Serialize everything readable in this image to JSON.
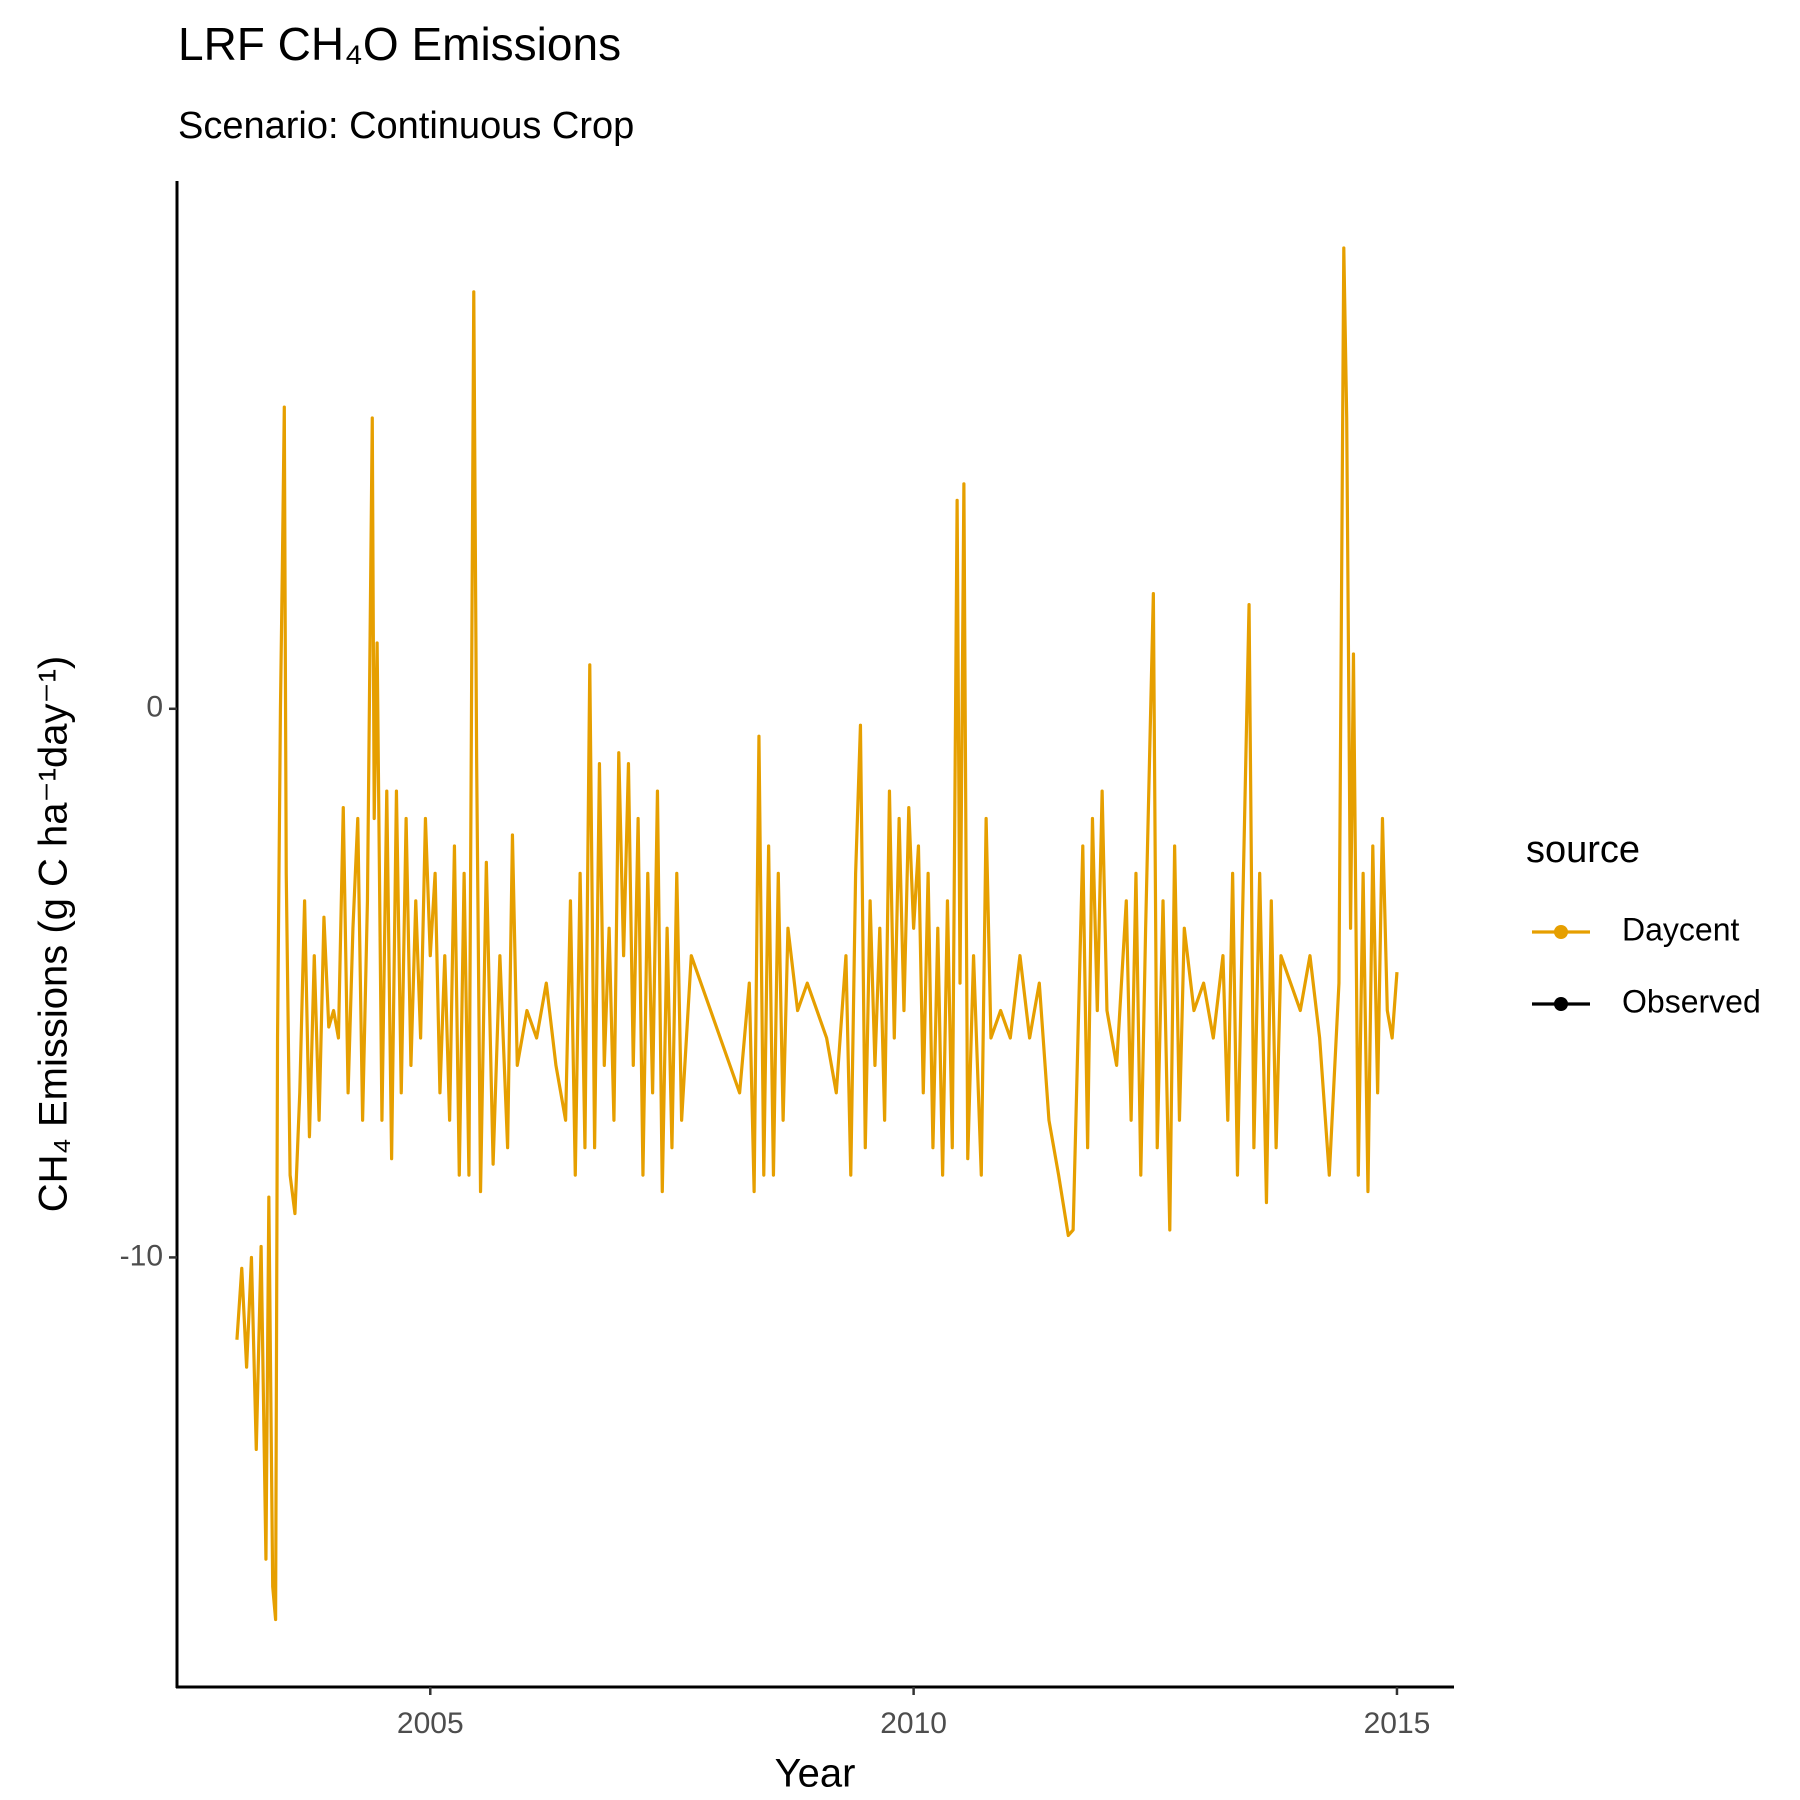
{
  "chart_data": {
    "type": "line",
    "title": "LRF CH₄O Emissions",
    "subtitle": "Scenario: Continuous Crop",
    "x_label": "Year",
    "y_label": "CH₄ Emissions (g C ha⁻¹day⁻¹)",
    "legend_title": "source",
    "legend_position": "right",
    "grid": false,
    "xlim": [
      2002.38,
      2015.59
    ],
    "ylim": [
      -17.83,
      9.62
    ],
    "xticks": [
      2005,
      2010,
      2015
    ],
    "yticks": [
      -10,
      0
    ],
    "series": [
      {
        "name": "Daycent",
        "color": "#E69F00",
        "x": [
          2003.0,
          2003.05,
          2003.1,
          2003.15,
          2003.2,
          2003.25,
          2003.3,
          2003.33,
          2003.37,
          2003.4,
          2003.42,
          2003.45,
          2003.47,
          2003.49,
          2003.51,
          2003.55,
          2003.6,
          2003.65,
          2003.7,
          2003.75,
          2003.8,
          2003.85,
          2003.9,
          2003.95,
          2004.0,
          2004.05,
          2004.1,
          2004.15,
          2004.2,
          2004.25,
          2004.3,
          2004.35,
          2004.4,
          2004.42,
          2004.45,
          2004.5,
          2004.55,
          2004.6,
          2004.65,
          2004.7,
          2004.75,
          2004.8,
          2004.85,
          2004.9,
          2004.95,
          2005.0,
          2005.05,
          2005.1,
          2005.15,
          2005.2,
          2005.25,
          2005.3,
          2005.35,
          2005.4,
          2005.45,
          2005.48,
          2005.52,
          2005.58,
          2005.65,
          2005.72,
          2005.8,
          2005.85,
          2005.9,
          2006.0,
          2006.1,
          2006.2,
          2006.3,
          2006.4,
          2006.45,
          2006.5,
          2006.55,
          2006.6,
          2006.65,
          2006.7,
          2006.75,
          2006.8,
          2006.85,
          2006.9,
          2006.95,
          2007.0,
          2007.05,
          2007.1,
          2007.15,
          2007.2,
          2007.25,
          2007.3,
          2007.35,
          2007.4,
          2007.45,
          2007.5,
          2007.55,
          2007.6,
          2007.7,
          2007.8,
          2007.9,
          2008.0,
          2008.1,
          2008.2,
          2008.3,
          2008.35,
          2008.4,
          2008.45,
          2008.5,
          2008.55,
          2008.6,
          2008.65,
          2008.7,
          2008.8,
          2008.9,
          2009.0,
          2009.1,
          2009.2,
          2009.3,
          2009.35,
          2009.4,
          2009.45,
          2009.5,
          2009.55,
          2009.6,
          2009.65,
          2009.7,
          2009.75,
          2009.8,
          2009.85,
          2009.9,
          2009.95,
          2010.0,
          2010.05,
          2010.1,
          2010.15,
          2010.2,
          2010.25,
          2010.3,
          2010.35,
          2010.4,
          2010.45,
          2010.48,
          2010.52,
          2010.56,
          2010.62,
          2010.7,
          2010.75,
          2010.8,
          2010.9,
          2011.0,
          2011.1,
          2011.2,
          2011.3,
          2011.4,
          2011.5,
          2011.6,
          2011.65,
          2011.7,
          2011.75,
          2011.8,
          2011.85,
          2011.9,
          2011.95,
          2012.0,
          2012.1,
          2012.2,
          2012.25,
          2012.3,
          2012.35,
          2012.4,
          2012.48,
          2012.52,
          2012.58,
          2012.65,
          2012.7,
          2012.75,
          2012.8,
          2012.9,
          2013.0,
          2013.1,
          2013.2,
          2013.25,
          2013.3,
          2013.35,
          2013.4,
          2013.47,
          2013.52,
          2013.58,
          2013.65,
          2013.7,
          2013.75,
          2013.8,
          2013.9,
          2014.0,
          2014.1,
          2014.2,
          2014.3,
          2014.4,
          2014.45,
          2014.48,
          2014.52,
          2014.55,
          2014.6,
          2014.65,
          2014.7,
          2014.75,
          2014.8,
          2014.85,
          2014.9,
          2014.95,
          2015.0
        ],
        "values": [
          -11.5,
          -10.2,
          -12.0,
          -10.0,
          -13.5,
          -9.8,
          -15.5,
          -8.9,
          -16.0,
          -16.6,
          -6.0,
          0.0,
          2.6,
          5.5,
          -3.0,
          -8.5,
          -9.2,
          -7.0,
          -3.5,
          -7.8,
          -4.5,
          -7.5,
          -3.8,
          -5.8,
          -5.5,
          -6.0,
          -1.8,
          -7.0,
          -4.0,
          -2.0,
          -7.5,
          -3.5,
          5.3,
          -2.0,
          1.2,
          -7.5,
          -1.5,
          -8.2,
          -1.5,
          -7.0,
          -2.0,
          -6.5,
          -3.5,
          -6.0,
          -2.0,
          -4.5,
          -3.0,
          -7.0,
          -4.5,
          -7.5,
          -2.5,
          -8.5,
          -3.0,
          -8.5,
          7.6,
          -1.0,
          -8.8,
          -2.8,
          -8.3,
          -4.5,
          -8.0,
          -2.3,
          -6.5,
          -5.5,
          -6.0,
          -5.0,
          -6.5,
          -7.5,
          -3.5,
          -8.5,
          -3.0,
          -8.0,
          0.8,
          -8.0,
          -1.0,
          -6.5,
          -4.0,
          -7.5,
          -0.8,
          -4.5,
          -1.0,
          -6.5,
          -2.0,
          -8.5,
          -3.0,
          -7.0,
          -1.5,
          -8.8,
          -4.0,
          -8.0,
          -3.0,
          -7.5,
          -4.5,
          -5.0,
          -5.5,
          -6.0,
          -6.5,
          -7.0,
          -5.0,
          -8.8,
          -0.5,
          -8.5,
          -2.5,
          -8.5,
          -3.0,
          -7.5,
          -4.0,
          -5.5,
          -5.0,
          -5.5,
          -6.0,
          -7.0,
          -4.5,
          -8.5,
          -3.0,
          -0.3,
          -8.0,
          -3.5,
          -6.5,
          -4.0,
          -7.5,
          -1.5,
          -6.0,
          -2.0,
          -5.5,
          -1.8,
          -4.0,
          -2.5,
          -7.0,
          -3.0,
          -8.0,
          -4.0,
          -8.5,
          -3.5,
          -8.0,
          3.8,
          -5.0,
          4.1,
          -8.2,
          -4.5,
          -8.5,
          -2.0,
          -6.0,
          -5.5,
          -6.0,
          -4.5,
          -6.0,
          -5.0,
          -7.5,
          -8.5,
          -9.6,
          -9.5,
          -6.0,
          -2.5,
          -8.0,
          -2.0,
          -5.5,
          -1.5,
          -5.5,
          -6.5,
          -3.5,
          -7.5,
          -3.0,
          -8.5,
          -4.0,
          2.1,
          -8.0,
          -3.5,
          -9.5,
          -2.5,
          -7.5,
          -4.0,
          -5.5,
          -5.0,
          -6.0,
          -4.5,
          -7.5,
          -3.0,
          -8.5,
          -4.0,
          1.9,
          -8.0,
          -3.0,
          -9.0,
          -3.5,
          -8.0,
          -4.5,
          -5.0,
          -5.5,
          -4.5,
          -6.0,
          -8.5,
          -5.0,
          8.4,
          5.3,
          -4.0,
          1.0,
          -8.5,
          -3.0,
          -8.8,
          -2.5,
          -7.0,
          -2.0,
          -5.5,
          -6.0,
          -4.8
        ]
      },
      {
        "name": "Observed",
        "color": "#000000",
        "x": [],
        "values": []
      }
    ]
  }
}
